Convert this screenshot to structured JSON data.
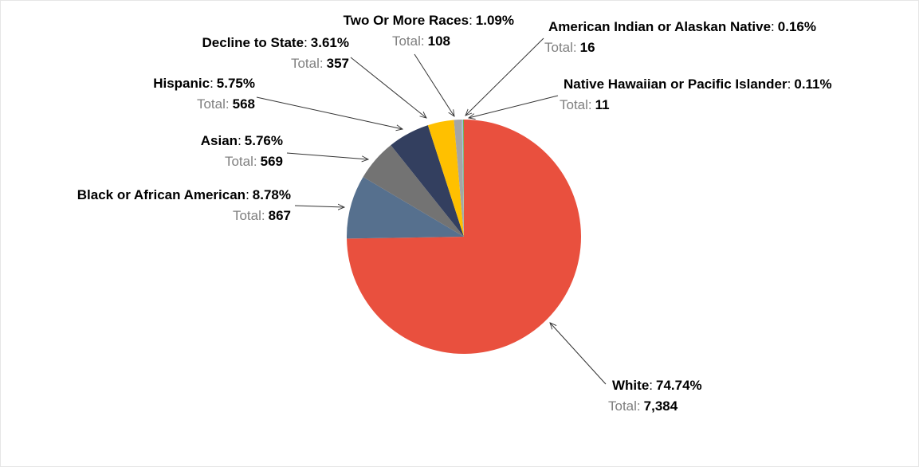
{
  "chart_data": {
    "type": "pie",
    "categories": [
      "White",
      "Black or African American",
      "Asian",
      "Hispanic",
      "Decline to State",
      "Two Or More Races",
      "American Indian or Alaskan Native",
      "Native Hawaiian or Pacific Islander"
    ],
    "values": [
      74.74,
      8.78,
      5.76,
      5.75,
      3.61,
      1.09,
      0.16,
      0.11
    ],
    "value_labels": [
      "74.74%",
      "8.78%",
      "5.76%",
      "5.75%",
      "3.61%",
      "1.09%",
      "0.16%",
      "0.11%"
    ],
    "colors": [
      "#e9503e",
      "#56708e",
      "#737373",
      "#333f5f",
      "#ffc000",
      "#a5a5a5",
      "#9dc3e6",
      "#70ad47"
    ],
    "totals": [
      7384,
      867,
      569,
      568,
      357,
      108,
      16,
      11
    ],
    "total_labels": [
      "7,384",
      "867",
      "569",
      "568",
      "357",
      "108",
      "16",
      "11"
    ],
    "total_caption": "Total",
    "separator": ":"
  }
}
